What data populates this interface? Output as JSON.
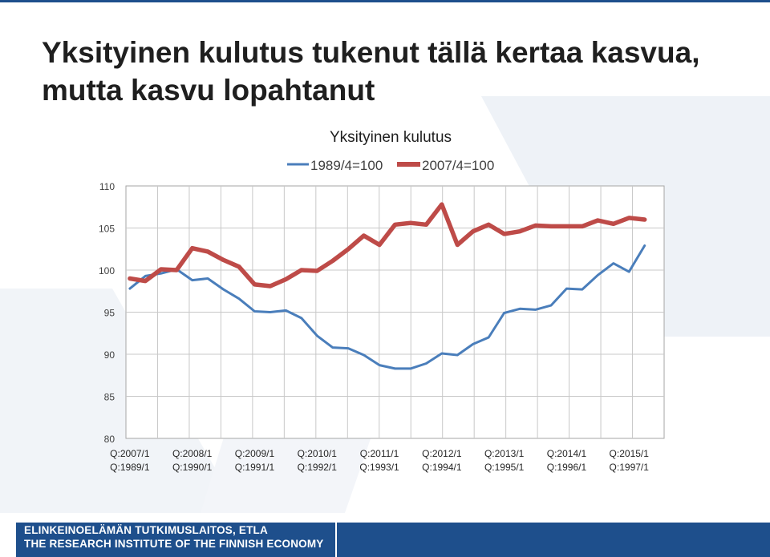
{
  "slide": {
    "title": "Yksityinen kulutus tukenut tällä kertaa kasvua, mutta kasvu lopahtanut"
  },
  "footer": {
    "line1": "ELINKEINOELÄMÄN TUTKIMUSLAITOS, ETLA",
    "line2": "THE RESEARCH INSTITUTE OF THE FINNISH ECONOMY"
  },
  "colors": {
    "series_blue": "#4a7ebb",
    "series_red": "#be4b48",
    "brand_blue": "#1e4f8c"
  },
  "chart_data": {
    "type": "line",
    "title": "Yksityinen kulutus",
    "xlabel": "",
    "ylabel": "",
    "ylim": [
      80,
      110
    ],
    "yticks": [
      80,
      85,
      90,
      95,
      100,
      105,
      110
    ],
    "grid": true,
    "legend_position": "top",
    "x_tick_labels": [
      [
        "Q:2007/1",
        "Q:1989/1"
      ],
      [
        "Q:2008/1",
        "Q:1990/1"
      ],
      [
        "Q:2009/1",
        "Q:1991/1"
      ],
      [
        "Q:2010/1",
        "Q:1992/1"
      ],
      [
        "Q:2011/1",
        "Q:1993/1"
      ],
      [
        "Q:2012/1",
        "Q:1994/1"
      ],
      [
        "Q:2013/1",
        "Q:1995/1"
      ],
      [
        "Q:2014/1",
        "Q:1996/1"
      ],
      [
        "Q:2015/1",
        "Q:1997/1"
      ]
    ],
    "series": [
      {
        "name": "1989/4=100",
        "color": "#4a7ebb",
        "values": [
          97.8,
          99.3,
          99.6,
          100.1,
          98.8,
          99.0,
          97.7,
          96.6,
          95.1,
          95.0,
          95.2,
          94.3,
          92.2,
          90.8,
          90.7,
          89.9,
          88.7,
          88.3,
          88.3,
          88.9,
          90.1,
          89.9,
          91.2,
          92.0,
          94.9,
          95.4,
          95.3,
          95.8,
          97.8,
          97.7,
          99.4,
          100.8,
          99.8,
          102.9
        ]
      },
      {
        "name": "2007/4=100",
        "color": "#be4b48",
        "values": [
          99.0,
          98.7,
          100.1,
          100.0,
          102.6,
          102.2,
          101.2,
          100.4,
          98.3,
          98.1,
          98.9,
          100.0,
          99.9,
          101.1,
          102.5,
          104.1,
          103.0,
          105.4,
          105.6,
          105.4,
          107.8,
          103.0,
          104.6,
          105.4,
          104.3,
          104.6,
          105.3,
          105.2,
          105.2,
          105.2,
          105.9,
          105.5,
          106.2,
          106.0
        ]
      }
    ]
  }
}
